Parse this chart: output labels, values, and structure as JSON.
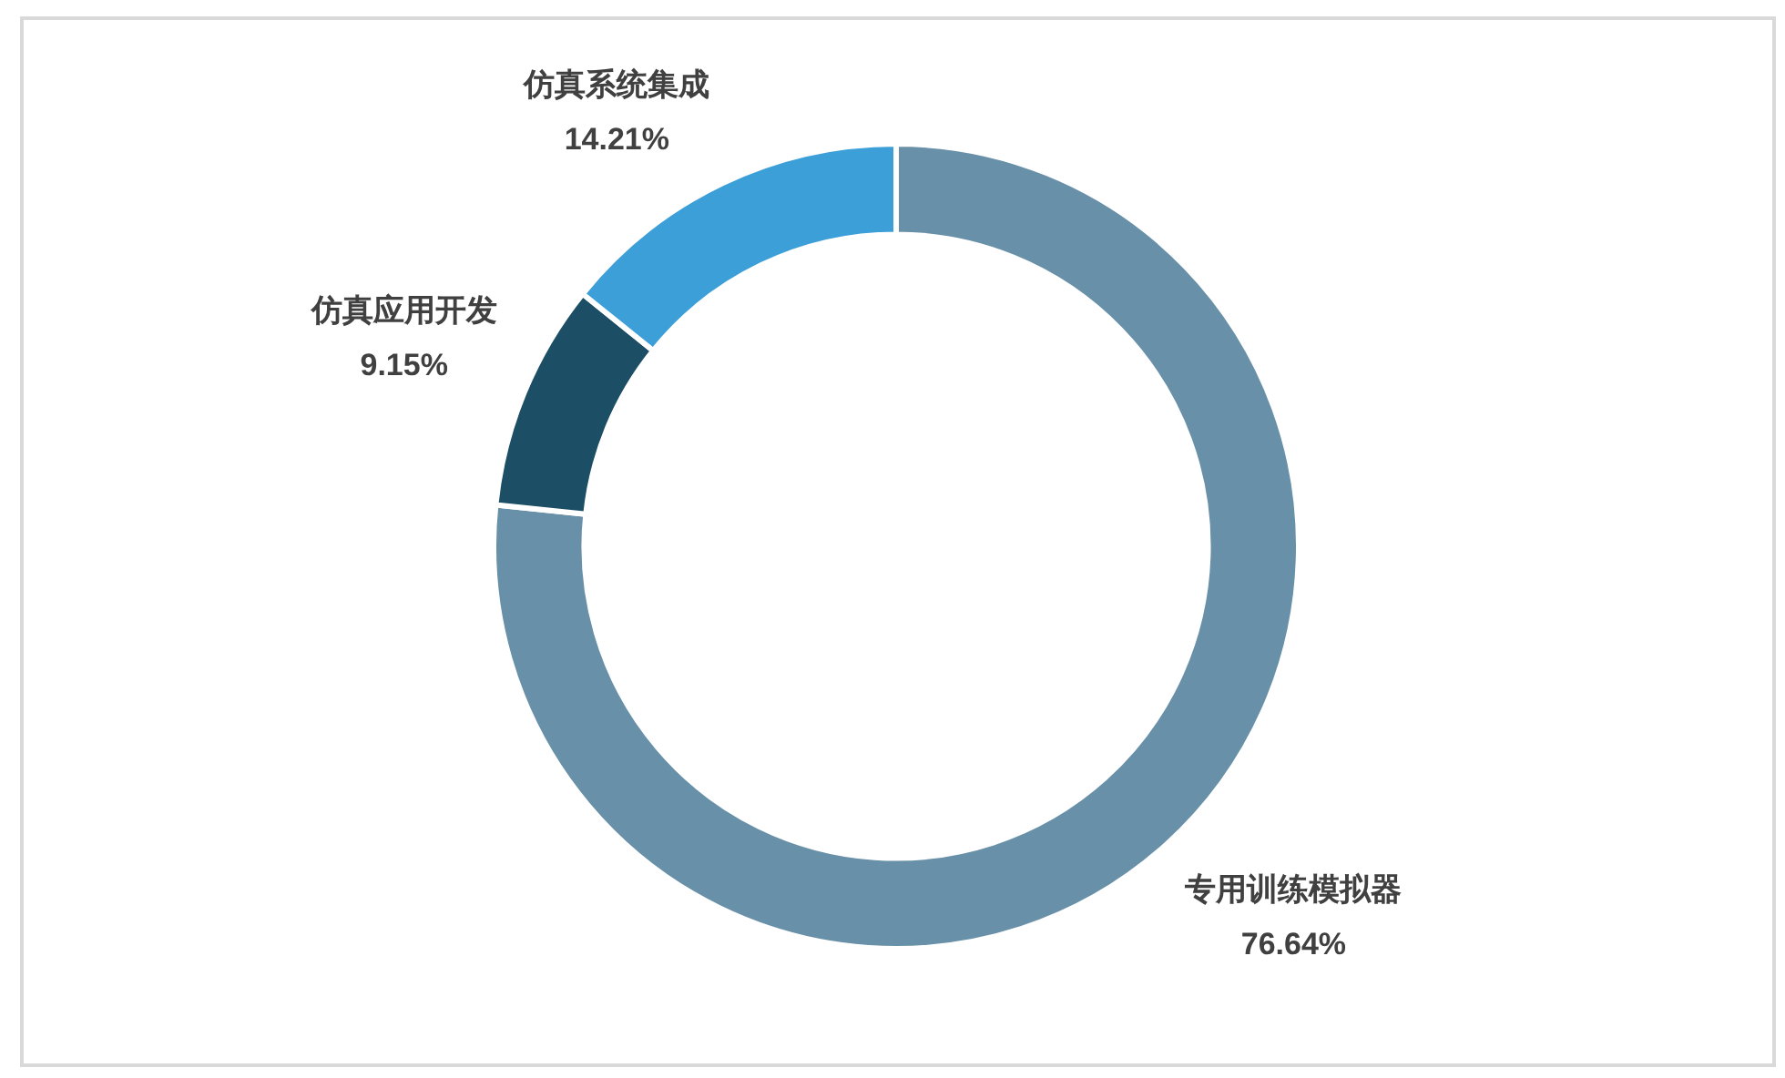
{
  "chart_data": {
    "type": "donut",
    "categories": [
      "专用训练模拟器",
      "仿真应用开发",
      "仿真系统集成"
    ],
    "values": [
      76.64,
      9.15,
      14.21
    ],
    "colors": [
      "#6890a8",
      "#1c4e66",
      "#3c9fd8"
    ],
    "value_labels": [
      "76.64%",
      "9.15%",
      "14.21%"
    ]
  }
}
